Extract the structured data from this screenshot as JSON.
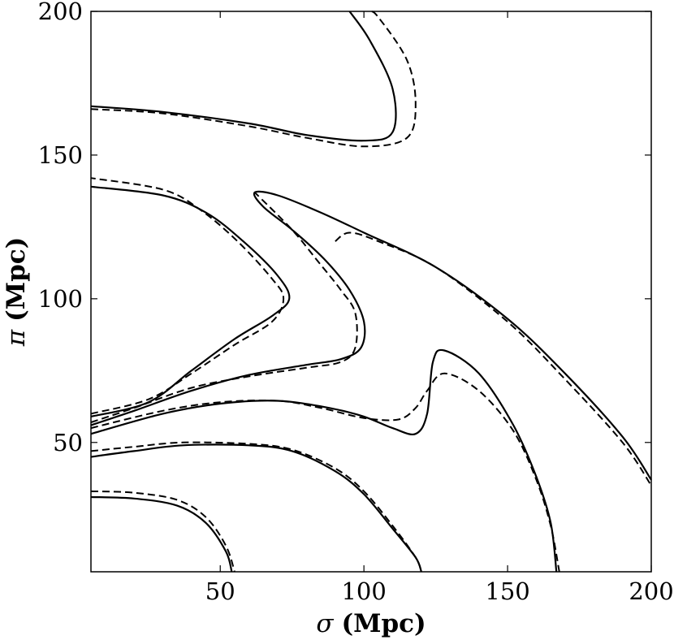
{
  "chart_data": {
    "type": "line",
    "title": "",
    "xlabel": {
      "symbol": "σ",
      "text": "(Mpc)"
    },
    "ylabel": {
      "symbol": "π",
      "text": "(Mpc)"
    },
    "xlim": [
      5,
      200
    ],
    "ylim": [
      5,
      200
    ],
    "xticks": [
      50,
      100,
      150,
      200
    ],
    "yticks": [
      50,
      100,
      150,
      200
    ],
    "grid": false,
    "series": [
      {
        "style": "solid",
        "contours": [
          [
            [
              5,
              31
            ],
            [
              20,
              30.5
            ],
            [
              35,
              28
            ],
            [
              45,
              22
            ],
            [
              52,
              12
            ],
            [
              54,
              5
            ]
          ],
          [
            [
              5,
              45
            ],
            [
              20,
              47
            ],
            [
              37,
              49
            ],
            [
              60,
              49
            ],
            [
              75,
              47
            ],
            [
              90,
              40
            ],
            [
              100,
              32
            ],
            [
              110,
              20
            ],
            [
              118,
              10
            ],
            [
              120,
              5
            ]
          ],
          [
            [
              5,
              53
            ],
            [
              30,
              60
            ],
            [
              50,
              63.5
            ],
            [
              70,
              64.5
            ],
            [
              88,
              62
            ],
            [
              100,
              59
            ],
            [
              110,
              55
            ],
            [
              118,
              53
            ],
            [
              122,
              60
            ],
            [
              124,
              78
            ],
            [
              128,
              82
            ],
            [
              140,
              74
            ],
            [
              152,
              56
            ],
            [
              160,
              38
            ],
            [
              165,
              22
            ],
            [
              167,
              5
            ]
          ],
          [
            [
              5,
              56
            ],
            [
              20,
              61
            ],
            [
              40,
              68
            ],
            [
              60,
              73.5
            ],
            [
              80,
              77
            ],
            [
              92,
              79
            ],
            [
              99,
              83
            ],
            [
              100,
              92
            ],
            [
              95,
              103
            ],
            [
              86,
              114
            ],
            [
              75,
              124
            ],
            [
              65,
              132
            ],
            [
              62,
              137
            ],
            [
              70,
              136
            ],
            [
              85,
              130
            ],
            [
              100,
              123
            ],
            [
              125,
              111
            ],
            [
              150,
              93
            ],
            [
              170,
              74
            ],
            [
              190,
              52
            ],
            [
              200,
              37
            ]
          ],
          [
            [
              5,
              59
            ],
            [
              25,
              64
            ],
            [
              40,
              75
            ],
            [
              55,
              86
            ],
            [
              68,
              94
            ],
            [
              74,
              100
            ],
            [
              70,
              108
            ],
            [
              58,
              120
            ],
            [
              45,
              130
            ],
            [
              30,
              136
            ],
            [
              5,
              139
            ]
          ],
          [
            [
              5,
              167
            ],
            [
              30,
              165
            ],
            [
              60,
              161
            ],
            [
              80,
              157
            ],
            [
              100,
              155
            ],
            [
              110,
              158
            ],
            [
              110,
              173
            ],
            [
              102,
              190
            ],
            [
              95,
              200
            ]
          ]
        ]
      },
      {
        "style": "dashed",
        "contours": [
          [
            [
              5,
              33
            ],
            [
              20,
              32.5
            ],
            [
              35,
              30
            ],
            [
              45,
              24
            ],
            [
              52,
              14
            ],
            [
              55,
              5
            ]
          ],
          [
            [
              5,
              47
            ],
            [
              20,
              48.5
            ],
            [
              37,
              50
            ],
            [
              60,
              49.5
            ],
            [
              75,
              47.5
            ],
            [
              90,
              41
            ],
            [
              100,
              33
            ],
            [
              110,
              21
            ],
            [
              118,
              10
            ],
            [
              120,
              5
            ]
          ],
          [
            [
              5,
              55
            ],
            [
              30,
              61
            ],
            [
              50,
              64
            ],
            [
              70,
              64.5
            ],
            [
              85,
              62
            ],
            [
              100,
              58.5
            ],
            [
              112,
              58
            ],
            [
              118,
              62
            ],
            [
              122,
              68
            ],
            [
              128,
              74
            ],
            [
              140,
              68
            ],
            [
              152,
              54
            ],
            [
              160,
              37
            ],
            [
              165,
              21
            ],
            [
              168,
              5
            ]
          ],
          [
            [
              5,
              57
            ],
            [
              20,
              62
            ],
            [
              40,
              69
            ],
            [
              60,
              73
            ],
            [
              80,
              76
            ],
            [
              92,
              78
            ],
            [
              97,
              83
            ],
            [
              97,
              95
            ],
            [
              92,
              103
            ],
            [
              84,
              113
            ],
            [
              75,
              124
            ],
            [
              62,
              137
            ]
          ],
          [
            [
              90,
              120
            ],
            [
              95,
              123
            ],
            [
              105,
              120
            ],
            [
              125,
              111
            ],
            [
              150,
              92
            ],
            [
              170,
              72
            ],
            [
              190,
              50
            ],
            [
              200,
              35
            ]
          ],
          [
            [
              5,
              60
            ],
            [
              25,
              65
            ],
            [
              40,
              74
            ],
            [
              55,
              84
            ],
            [
              68,
              92
            ],
            [
              72,
              100
            ],
            [
              68,
              107
            ],
            [
              56,
              120
            ],
            [
              43,
              131
            ],
            [
              30,
              138
            ],
            [
              5,
              142
            ]
          ],
          [
            [
              5,
              166
            ],
            [
              30,
              164.5
            ],
            [
              60,
              160
            ],
            [
              80,
              156
            ],
            [
              100,
              153
            ],
            [
              115,
              156
            ],
            [
              118,
              168
            ],
            [
              115,
              183
            ],
            [
              105,
              198
            ],
            [
              102,
              200
            ]
          ]
        ]
      }
    ]
  }
}
